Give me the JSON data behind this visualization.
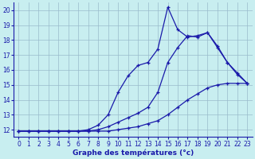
{
  "title": "",
  "xlabel": "Graphe des températures (°c)",
  "ylabel": "",
  "x": [
    0,
    1,
    2,
    3,
    4,
    5,
    6,
    7,
    8,
    9,
    10,
    11,
    12,
    13,
    14,
    15,
    16,
    17,
    18,
    19,
    20,
    21,
    22,
    23
  ],
  "line_bottom": [
    11.9,
    11.9,
    11.9,
    11.9,
    11.9,
    11.9,
    11.9,
    11.9,
    11.9,
    11.9,
    12.0,
    12.1,
    12.2,
    12.4,
    12.6,
    13.0,
    13.5,
    14.0,
    14.4,
    14.8,
    15.0,
    15.1,
    15.1,
    15.1
  ],
  "line_mid": [
    11.9,
    11.9,
    11.9,
    11.9,
    11.9,
    11.9,
    11.9,
    11.9,
    12.0,
    12.2,
    12.5,
    12.8,
    13.1,
    13.5,
    14.5,
    16.5,
    17.5,
    18.3,
    18.2,
    18.5,
    17.5,
    16.5,
    15.7,
    15.1
  ],
  "line_top": [
    11.9,
    11.9,
    11.9,
    11.9,
    11.9,
    11.9,
    11.9,
    12.0,
    12.3,
    13.0,
    14.5,
    15.6,
    16.3,
    16.5,
    17.4,
    20.2,
    18.7,
    18.2,
    18.3,
    18.5,
    17.6,
    16.5,
    15.8,
    15.1
  ],
  "line_color": "#1a1aaa",
  "bg_color": "#c8eef0",
  "grid_color": "#99bbcc",
  "ylim": [
    11.5,
    20.5
  ],
  "xlim": [
    -0.5,
    23.5
  ],
  "yticks": [
    12,
    13,
    14,
    15,
    16,
    17,
    18,
    19,
    20
  ],
  "xticks": [
    0,
    1,
    2,
    3,
    4,
    5,
    6,
    7,
    8,
    9,
    10,
    11,
    12,
    13,
    14,
    15,
    16,
    17,
    18,
    19,
    20,
    21,
    22,
    23
  ],
  "tick_fontsize": 5.5,
  "xlabel_fontsize": 6.5
}
